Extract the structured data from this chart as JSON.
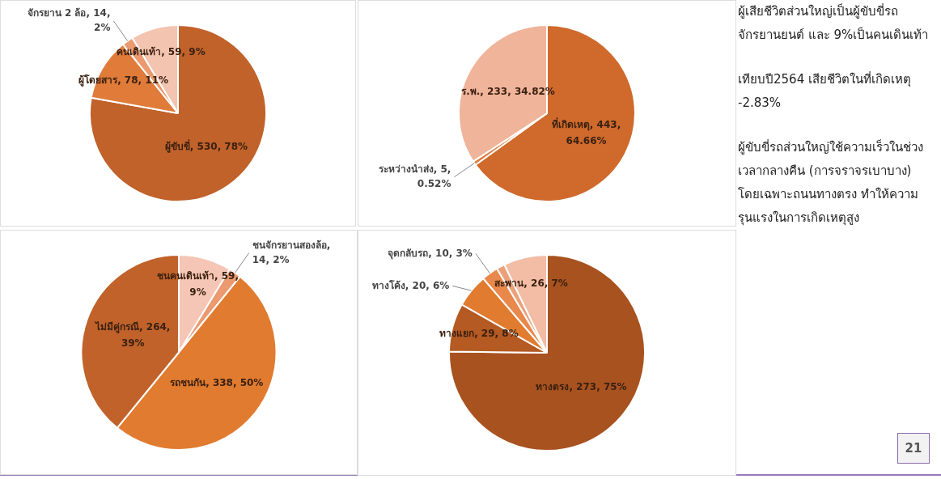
{
  "chart_data": [
    {
      "type": "pie",
      "categories": [
        "ผู้ขับขี่",
        "ผู้โดยสาร",
        "จักรยาน 2 ล้อ",
        "คนเดินเท้า"
      ],
      "values": [
        530,
        78,
        14,
        59
      ],
      "value_labels": [
        ", 530, 78%",
        ", 78, 11%",
        ", 14, 2%",
        ", 59, 9%"
      ],
      "colors": [
        "#c0622a",
        "#e07b3a",
        "#eb9a6f",
        "#f3c4b0"
      ],
      "legend": false
    },
    {
      "type": "pie",
      "categories": [
        "ที่เกิดเหตุ",
        "ระหว่างนำส่ง",
        "ร.พ."
      ],
      "values": [
        443,
        5,
        233
      ],
      "value_labels": [
        ", 443, 64.66%",
        ", 5, 0.52%",
        ", 233, 34.82%"
      ],
      "colors": [
        "#cf6a2c",
        "#e07b3a",
        "#f0b49a"
      ],
      "legend": false
    },
    {
      "type": "pie",
      "categories": [
        "ชนคนเดินเท้า",
        "ชนจักรยานสองล้อ",
        "รถชนกัน",
        "ไม่มีคู่กรณี"
      ],
      "values": [
        59,
        14,
        338,
        264
      ],
      "value_labels": [
        ", 59, 9%",
        ", 14, 2%",
        ", 338, 50%",
        ", 264, 39%"
      ],
      "colors": [
        "#f5c6b5",
        "#eb9a6f",
        "#e07b30",
        "#c0622a"
      ],
      "legend": false
    },
    {
      "type": "pie",
      "categories": [
        "ทางตรง",
        "ทางแยก",
        "ทางโค้ง",
        "จุดกลับรถ",
        null,
        "สะพาน"
      ],
      "values": [
        273,
        29,
        20,
        10,
        5,
        26
      ],
      "value_labels": [
        ", 273, 75%",
        ", 29, 8%",
        ", 20, 6%",
        ", 10, 3%",
        null,
        ", 26, 7%"
      ],
      "colors": [
        "#a8521f",
        "#b45a22",
        "#e07b30",
        "#e8884a",
        "#eba07a",
        "#f2bca5"
      ],
      "legend": false
    },
    {
      "type": "other",
      "annotations": [
        "ผู้เสียชีวิตส่วนใหญ่เป็นผู้ขับขี่รถจักรยานยนต์ และ 9%เป็นคนเดินเท้า",
        "เทียบปี2564 เสียชีวิตในที่เกิดเหตุ -2.83%",
        "ผู้ขับขี่รถส่วนใหญ่ใช้ความเร็วในช่วงเวลากลางคืน (การจราจรเบาบาง) โดยเฉพาะถนนทางตรง ทำให้ความรุนแรงในการเกิดเหตุสูง",
        "21"
      ]
    }
  ]
}
